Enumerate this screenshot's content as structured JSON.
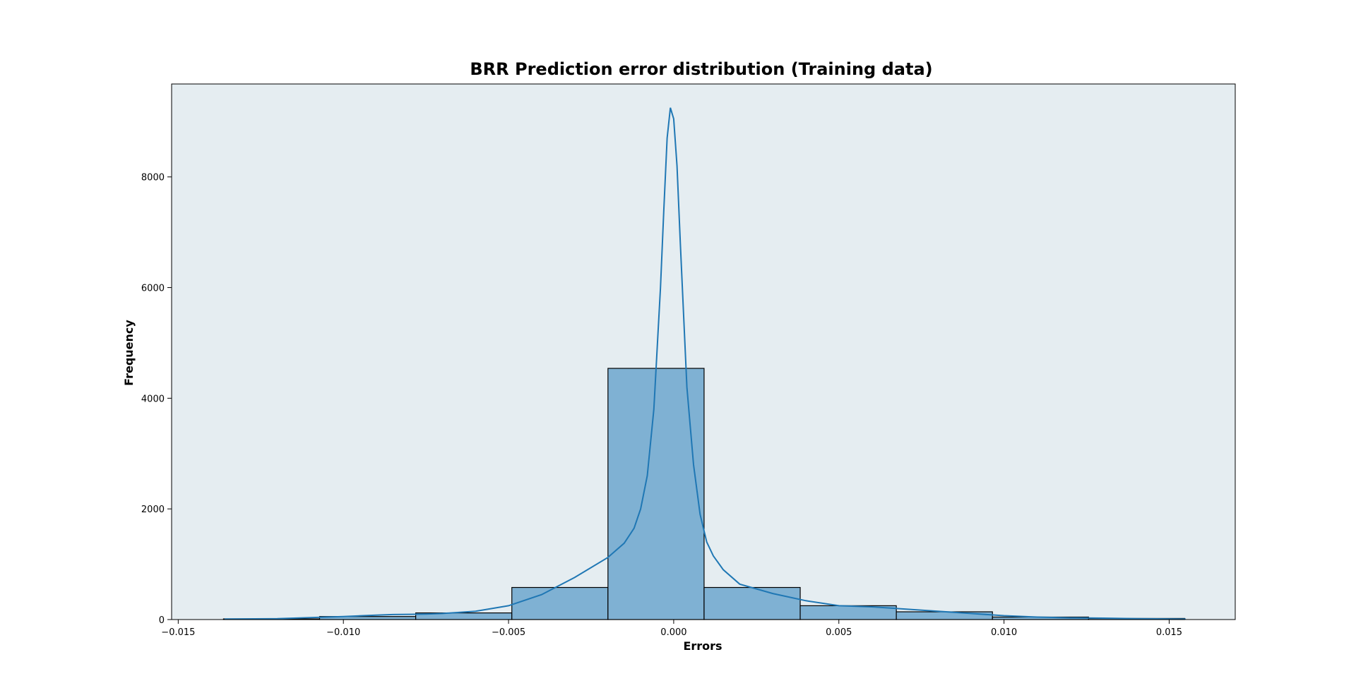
{
  "chart_data": {
    "type": "bar",
    "title": "BRR Prediction error distribution (Training data)",
    "xlabel": "Errors",
    "ylabel": "Frequency",
    "xlim": [
      -0.0152,
      0.017
    ],
    "ylim": [
      0,
      9680
    ],
    "x_ticks": [
      -0.015,
      -0.01,
      -0.005,
      0.0,
      0.005,
      0.01,
      0.015
    ],
    "x_tick_labels": [
      "−0.015",
      "−0.010",
      "−0.005",
      "0.000",
      "0.005",
      "0.010",
      "0.015"
    ],
    "y_ticks": [
      0,
      2000,
      4000,
      6000,
      8000
    ],
    "y_tick_labels": [
      "0",
      "2000",
      "4000",
      "6000",
      "8000"
    ],
    "bin_edges": [
      -0.01363,
      -0.01072,
      -0.00781,
      -0.0049,
      -0.00199,
      0.00092,
      0.00383,
      0.00674,
      0.00965,
      0.01256,
      0.01547
    ],
    "values": [
      12,
      55,
      120,
      580,
      4540,
      580,
      250,
      140,
      45,
      20
    ],
    "kde": {
      "x": [
        -0.0136,
        -0.012,
        -0.011,
        -0.01,
        -0.009,
        -0.0085,
        -0.008,
        -0.0075,
        -0.007,
        -0.006,
        -0.005,
        -0.004,
        -0.003,
        -0.002,
        -0.0015,
        -0.0012,
        -0.001,
        -0.0008,
        -0.0006,
        -0.0004,
        -0.0003,
        -0.0002,
        -0.0001,
        0.0,
        0.0001,
        0.0002,
        0.0004,
        0.0006,
        0.0008,
        0.001,
        0.0012,
        0.0015,
        0.002,
        0.003,
        0.004,
        0.005,
        0.006,
        0.007,
        0.008,
        0.009,
        0.01,
        0.011,
        0.012,
        0.013,
        0.014,
        0.0155
      ],
      "y": [
        10,
        15,
        35,
        55,
        80,
        90,
        95,
        100,
        110,
        150,
        250,
        450,
        760,
        1120,
        1380,
        1650,
        2000,
        2600,
        3800,
        6000,
        7400,
        8700,
        9250,
        9050,
        8200,
        6800,
        4200,
        2800,
        1900,
        1400,
        1150,
        900,
        640,
        470,
        340,
        250,
        230,
        190,
        150,
        110,
        70,
        45,
        30,
        25,
        15,
        8
      ]
    },
    "bar_color": "#7fb1d3",
    "bar_edge_color": "#000000",
    "line_color": "#1f77b4",
    "plot_background": "#e5edf1",
    "grid": false,
    "legend": "none"
  }
}
